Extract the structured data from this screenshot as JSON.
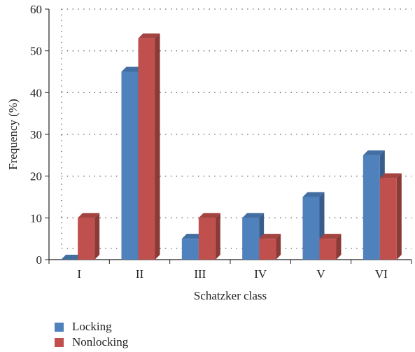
{
  "chart_data": {
    "type": "bar",
    "categories": [
      "I",
      "II",
      "III",
      "IV",
      "V",
      "VI"
    ],
    "series": [
      {
        "name": "Locking",
        "values": [
          0,
          45,
          5,
          10,
          15,
          25
        ],
        "color": "#4f81bd"
      },
      {
        "name": "Nonlocking",
        "values": [
          10,
          53,
          10,
          5,
          5,
          19.5
        ],
        "color": "#c0504d"
      }
    ],
    "title": "",
    "xlabel": "Schatzker class",
    "ylabel": "Frequency (%)",
    "ylim": [
      0,
      60
    ],
    "yticks": [
      0,
      10,
      20,
      30,
      40,
      50,
      60
    ],
    "grid": true,
    "legend_position": "bottom-left",
    "style": "3d"
  }
}
